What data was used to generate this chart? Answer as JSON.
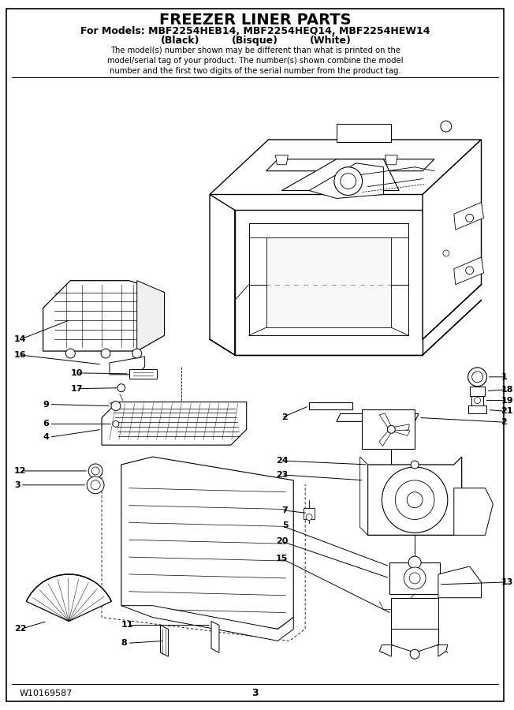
{
  "title": "FREEZER LINER PARTS",
  "subtitle": "For Models: MBF2254HEB14, MBF2254HEQ14, MBF2254HEW14",
  "col_black": "(Black)",
  "col_bisque": "(Bisque)",
  "col_white": "(White)",
  "disclaimer": "The model(s) number shown may be different than what is printed on the\nmodel/serial tag of your product. The number(s) shown combine the model\nnumber and the first two digits of the serial number from the product tag.",
  "footer_left": "W10169587",
  "footer_center": "3",
  "bg_color": "#ffffff",
  "figure_width": 6.52,
  "figure_height": 9.0,
  "dpi": 100
}
